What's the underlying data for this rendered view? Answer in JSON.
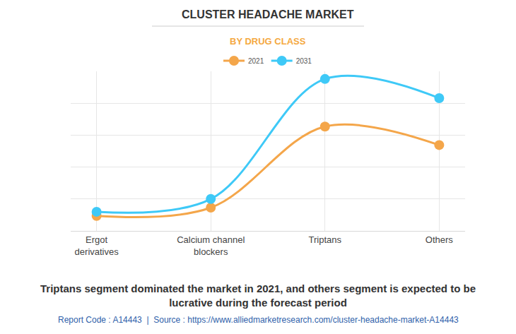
{
  "chart_data": {
    "type": "line",
    "title": "CLUSTER HEADACHE MARKET",
    "subtitle": "BY DRUG CLASS",
    "categories": [
      "Ergot derivatives",
      "Calcium channel blockers",
      "Triptans",
      "Others"
    ],
    "series": [
      {
        "name": "2021",
        "color": "#f4a64a",
        "values": [
          0.47,
          0.73,
          3.27,
          2.69
        ]
      },
      {
        "name": "2031",
        "color": "#3ec9f7",
        "values": [
          0.6,
          1.0,
          4.76,
          4.16
        ]
      }
    ],
    "ylim": [
      0,
      5
    ],
    "yticks": [
      0,
      1,
      2,
      3,
      4,
      5
    ],
    "grid": true,
    "legend": "top",
    "tick_labels": "x",
    "line_style": "spline",
    "marker": "circle",
    "annotations": [
      "Triptans segment dominated the market in 2021, and others segment is expected to be lucrative during the forecast period",
      "Report Code : A14443  |  Source : https://www.alliedmarketresearch.com/cluster-headache-market-A14443"
    ]
  }
}
